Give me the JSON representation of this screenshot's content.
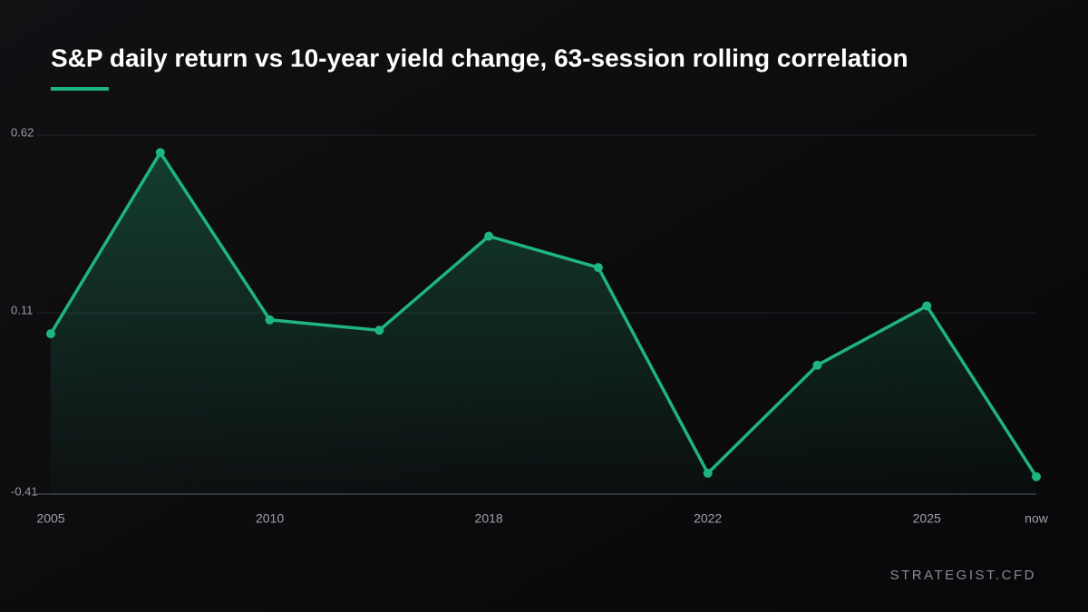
{
  "chart_data": {
    "type": "line",
    "title": "S&P daily return vs 10-year yield change, 63-session rolling correlation",
    "categories": [
      "2005",
      null,
      "2010",
      null,
      "2018",
      null,
      "2022",
      null,
      "2025",
      "now"
    ],
    "values": [
      0.05,
      0.57,
      0.09,
      0.06,
      0.33,
      0.24,
      -0.35,
      -0.04,
      0.13,
      -0.36
    ],
    "color": "#1fb57f",
    "ylim": [
      -0.41,
      0.62
    ],
    "yticks": [
      -0.41,
      0.11,
      0.62
    ],
    "grid": true,
    "watermark": "STRATEGIST.CFD"
  }
}
